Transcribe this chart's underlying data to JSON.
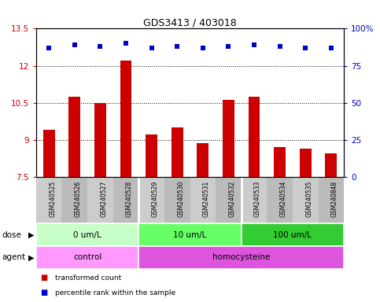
{
  "title": "GDS3413 / 403018",
  "samples": [
    "GSM240525",
    "GSM240526",
    "GSM240527",
    "GSM240528",
    "GSM240529",
    "GSM240530",
    "GSM240531",
    "GSM240532",
    "GSM240533",
    "GSM240534",
    "GSM240535",
    "GSM240848"
  ],
  "transformed_counts": [
    9.4,
    10.75,
    10.5,
    12.2,
    9.2,
    9.5,
    8.85,
    10.6,
    10.75,
    8.7,
    8.65,
    8.45
  ],
  "percentile_ranks": [
    87,
    89,
    88,
    90,
    87,
    88,
    87,
    88,
    89,
    88,
    87,
    87
  ],
  "bar_color": "#cc0000",
  "dot_color": "#0000cc",
  "ylim_left": [
    7.5,
    13.5
  ],
  "ylim_right": [
    0,
    100
  ],
  "yticks_left": [
    7.5,
    9.0,
    10.5,
    12.0,
    13.5
  ],
  "yticks_right": [
    0,
    25,
    50,
    75,
    100
  ],
  "ytick_labels_left": [
    "7.5",
    "9",
    "10.5",
    "12",
    "13.5"
  ],
  "ytick_labels_right": [
    "0",
    "25",
    "50",
    "75",
    "100%"
  ],
  "grid_lines": [
    9.0,
    10.5,
    12.0
  ],
  "dose_groups": [
    {
      "label": "0 um/L",
      "start": 0,
      "end": 4,
      "color": "#c8ffc8"
    },
    {
      "label": "10 um/L",
      "start": 4,
      "end": 8,
      "color": "#66ff66"
    },
    {
      "label": "100 um/L",
      "start": 8,
      "end": 12,
      "color": "#33cc33"
    }
  ],
  "agent_groups": [
    {
      "label": "control",
      "start": 0,
      "end": 4,
      "color": "#ff99ff"
    },
    {
      "label": "homocysteine",
      "start": 4,
      "end": 12,
      "color": "#dd55dd"
    }
  ],
  "dose_label": "dose",
  "agent_label": "agent",
  "legend_bar_label": "transformed count",
  "legend_dot_label": "percentile rank within the sample",
  "label_color_left": "#cc0000",
  "label_color_right": "#0000cc",
  "xtick_bg_odd": "#cccccc",
  "xtick_bg_even": "#bbbbbb",
  "background_color": "#ffffff"
}
